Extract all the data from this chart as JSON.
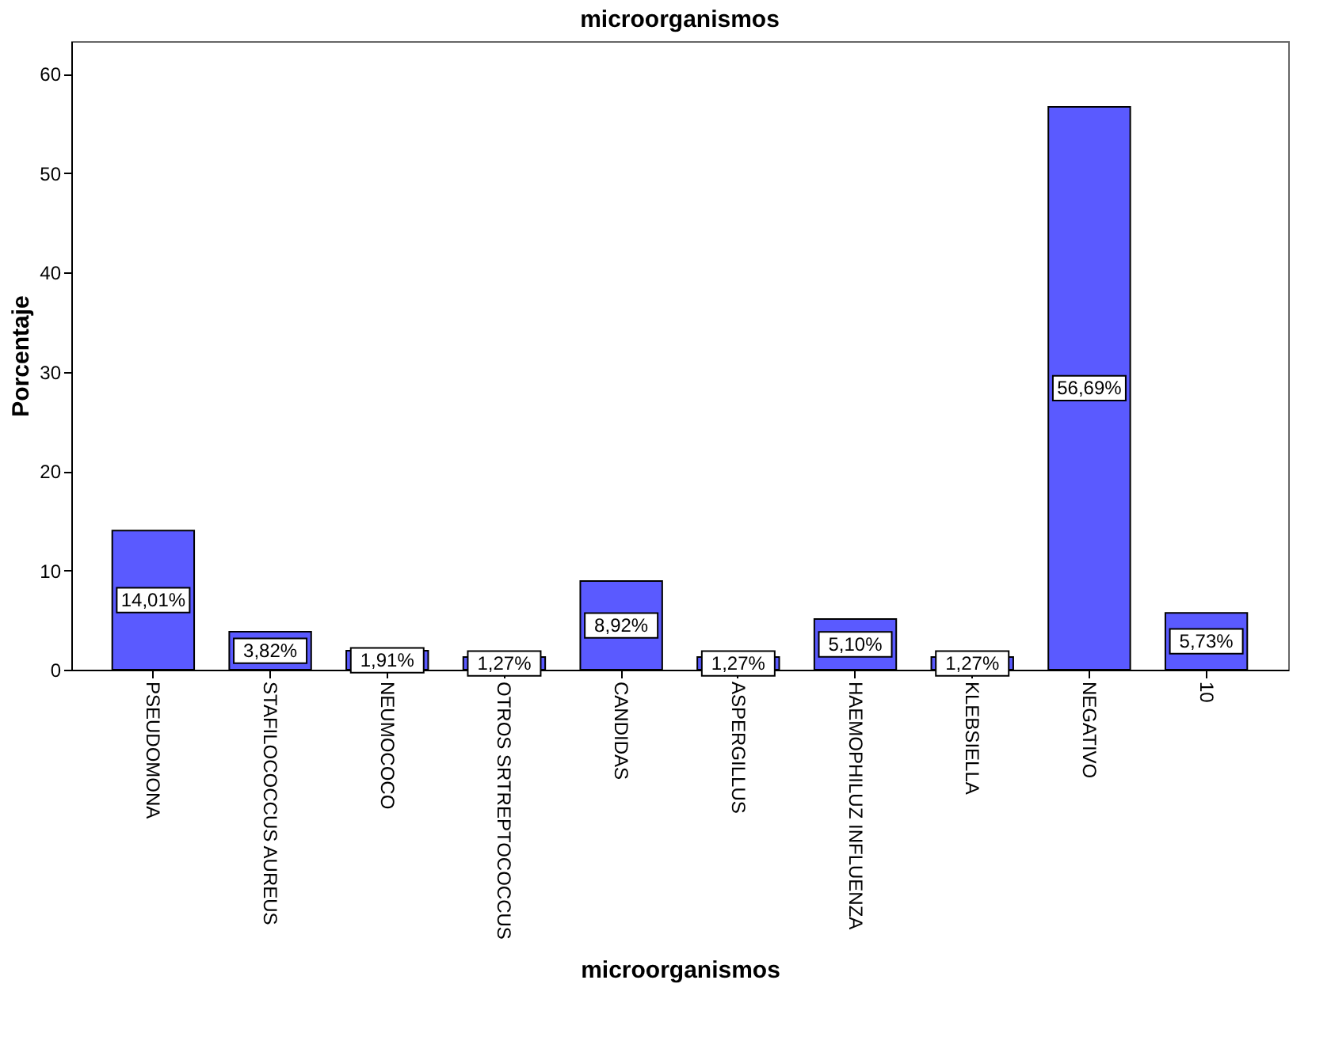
{
  "chart_data": {
    "type": "bar",
    "title": "microorganismos",
    "xlabel": "microorganismos",
    "ylabel": "Porcentaje",
    "categories": [
      "PSEUDOMONA",
      "STAFILOCOCCUS AUREUS",
      "NEUMOCOCO",
      "OTROS SRTREPTOCOCCUS",
      "CANDIDAS",
      "ASPERGILLUS",
      "HAEMOPHILUZ INFLUENZA",
      "KLEBSIELLA",
      "NEGATIVO",
      "10"
    ],
    "values": [
      14.01,
      3.82,
      1.91,
      1.27,
      8.92,
      1.27,
      5.1,
      1.27,
      56.69,
      5.73
    ],
    "value_labels": [
      "14,01%",
      "3,82%",
      "1,91%",
      "1,27%",
      "8,92%",
      "1,27%",
      "5,10%",
      "1,27%",
      "56,69%",
      "5,73%"
    ],
    "color": "#5a5aff",
    "ylim": [
      0,
      63.3
    ],
    "yticks": [
      0,
      10,
      20,
      30,
      40,
      50,
      60
    ],
    "grid": false
  }
}
